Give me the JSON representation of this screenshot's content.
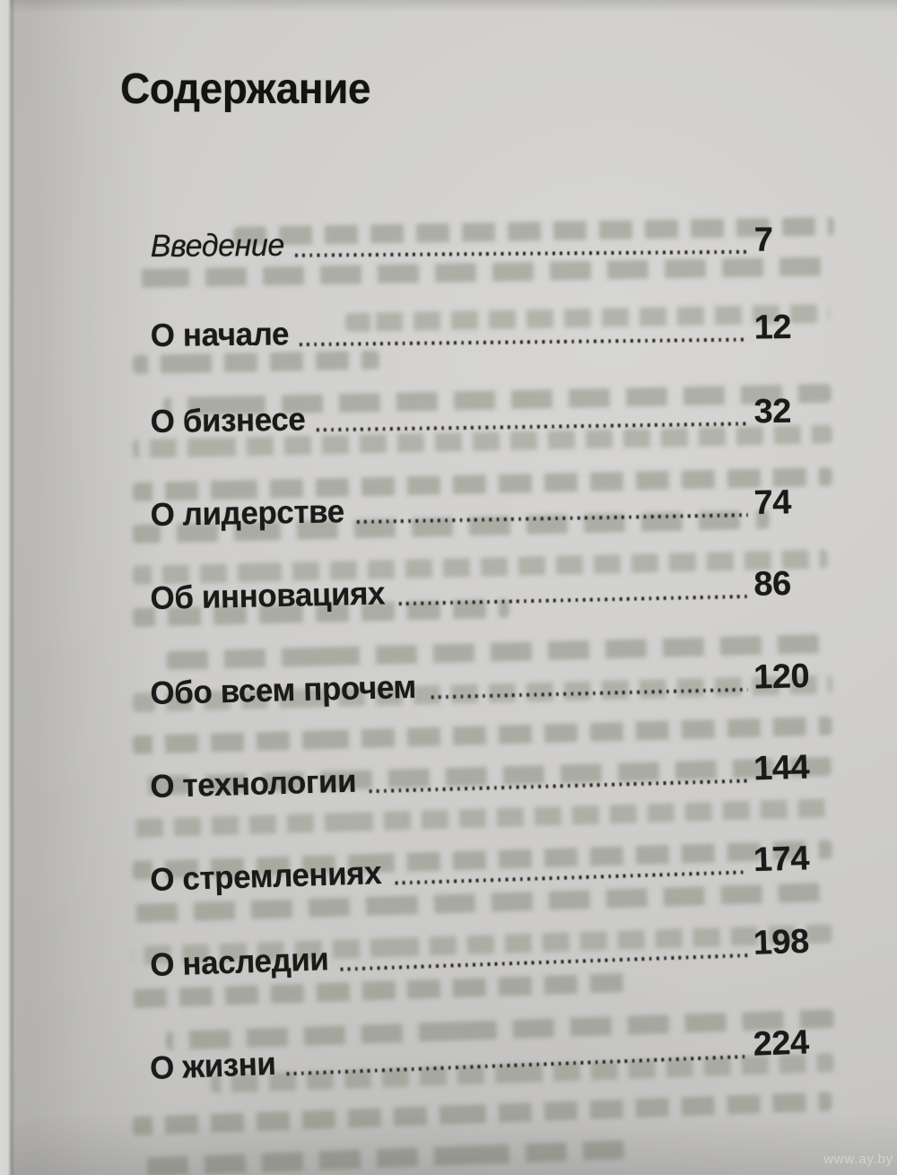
{
  "page": {
    "title": "Содержание",
    "watermark": "www.ay.by",
    "colors": {
      "paper": "#cfcecc",
      "ink": "#1a1a19",
      "bleedthrough": "#7c8370",
      "watermark": "#d7d8d5"
    },
    "entries": [
      {
        "label": "Введение",
        "page": "7",
        "style": "italic"
      },
      {
        "label": "О начале",
        "page": "12",
        "style": "bold"
      },
      {
        "label": "О бизнесе",
        "page": "32",
        "style": "bold"
      },
      {
        "label": "О лидерстве",
        "page": "74",
        "style": "bold"
      },
      {
        "label": "Об инновациях",
        "page": "86",
        "style": "bold"
      },
      {
        "label": "Обо всем прочем",
        "page": "120",
        "style": "bold"
      },
      {
        "label": "О технологии",
        "page": "144",
        "style": "bold"
      },
      {
        "label": "О стремлениях",
        "page": "174",
        "style": "bold"
      },
      {
        "label": "О наследии",
        "page": "198",
        "style": "bold"
      },
      {
        "label": "О жизни",
        "page": "224",
        "style": "bold"
      }
    ]
  }
}
